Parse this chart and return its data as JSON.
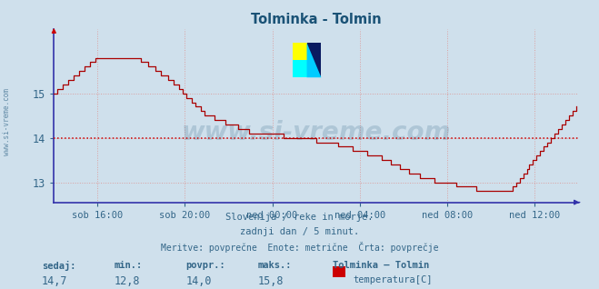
{
  "title": "Tolminka - Tolmin",
  "title_color": "#1a5276",
  "bg_color": "#cfe0ec",
  "plot_bg_color": "#cfe0ec",
  "line_color": "#aa0000",
  "avg_line_color": "#cc0000",
  "avg_value": 14.0,
  "grid_color": "#dba0a0",
  "axis_color": "#3333aa",
  "tick_color": "#336688",
  "ylim": [
    12.55,
    16.45
  ],
  "ytick_vals": [
    13,
    14,
    15
  ],
  "ytick_labels": [
    "13",
    "14",
    "15"
  ],
  "footer_lines": [
    "Slovenija / reke in morje.",
    "zadnji dan / 5 minut.",
    "Meritve: povprečne  Enote: metrične  Črta: povprečje"
  ],
  "footer_color": "#336688",
  "stats_labels": [
    "sedaj:",
    "min.:",
    "povpr.:",
    "maks.:"
  ],
  "stats_values": [
    "14,7",
    "12,8",
    "14,0",
    "15,8"
  ],
  "stats_series_name": "Tolminka – Tolmin",
  "stats_series_label": "temperatura[C]",
  "stats_color": "#336688",
  "xtick_labels": [
    "sob 16:00",
    "sob 20:00",
    "ned 00:00",
    "ned 04:00",
    "ned 08:00",
    "ned 12:00"
  ],
  "n_points": 288,
  "watermark_text": "www.si-vreme.com",
  "watermark_color": "#1a5276",
  "watermark_alpha": 0.18,
  "left_label": "www.si-vreme.com",
  "left_label_color": "#336688"
}
